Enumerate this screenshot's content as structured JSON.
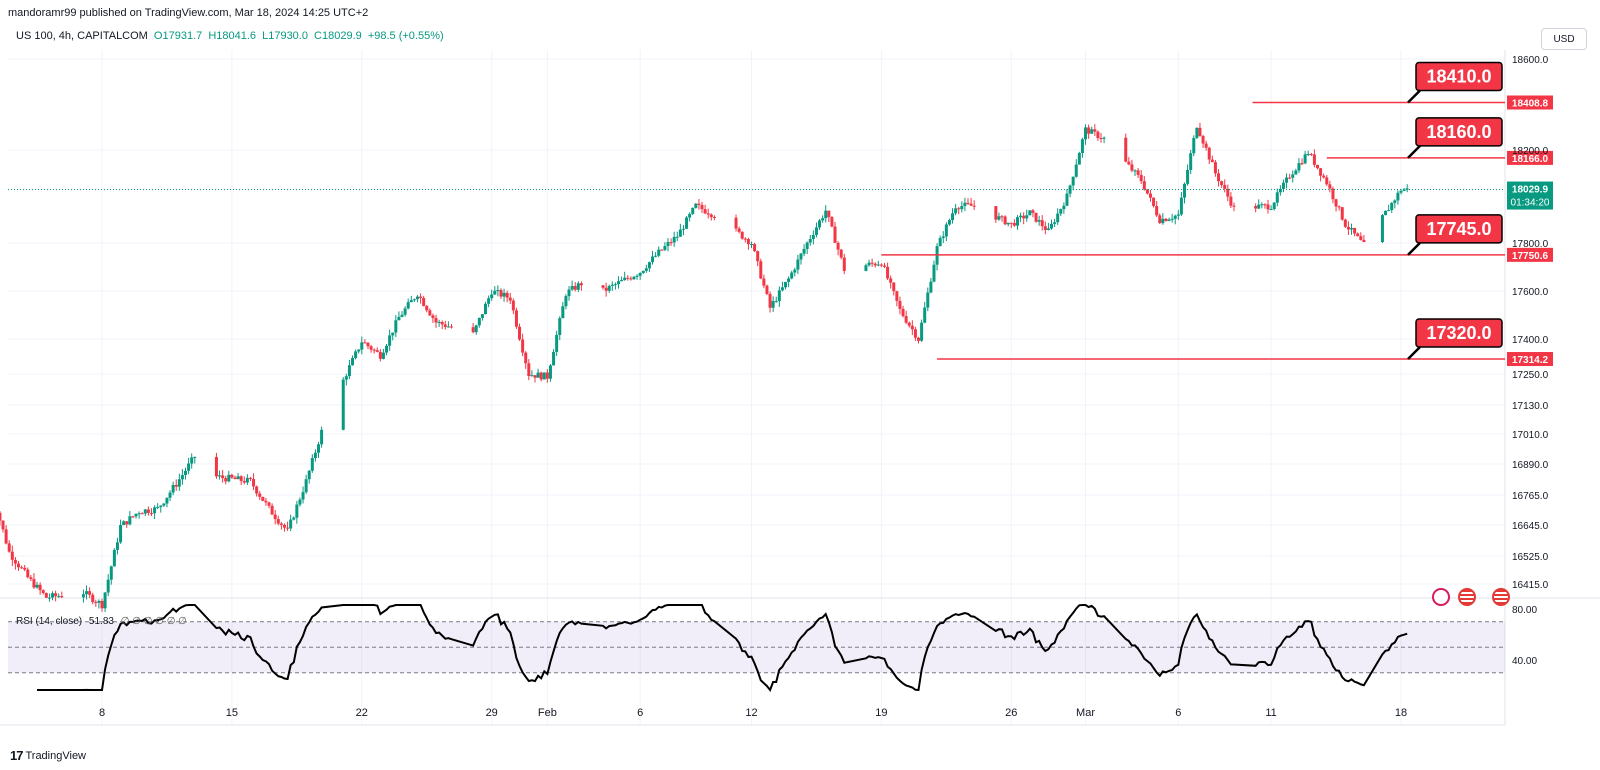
{
  "header": {
    "publisher": "mandoramr99 published on TradingView.com, Mar 18, 2024 14:25 UTC+2"
  },
  "symbol": {
    "title": "US 100, 4h, CAPITALCOM",
    "open": "O17931.7",
    "high": "H18041.6",
    "low": "L17930.0",
    "close": "C18029.9",
    "change": "+98.5 (+0.55%)"
  },
  "currency_button": "USD",
  "rsi": {
    "label": "RSI (14, close)",
    "value": "51.83",
    "extra": "∅ ∅ ∅ ∅ ∅ ∅",
    "levels": [
      70,
      50,
      30
    ],
    "axis_ticks": [
      "80.00",
      "40.00"
    ]
  },
  "footer": {
    "brand": "TradingView"
  },
  "chart_data": {
    "type": "candlestick",
    "y_ticks": [
      18600,
      18200,
      17800,
      17600,
      17400,
      17250,
      17130,
      17010,
      16890,
      16765,
      16645,
      16525,
      16415
    ],
    "y_tick_labels": [
      "18600.0",
      "18200.0",
      "17800.0",
      "17600.0",
      "17400.0",
      "17250.0",
      "17130.0",
      "17010.0",
      "16890.0",
      "16765.0",
      "16645.0",
      "16525.0",
      "16415.0"
    ],
    "x_tick_labels": [
      "8",
      "15",
      "22",
      "29",
      "Feb",
      "6",
      "12",
      "19",
      "26",
      "Mar",
      "6",
      "11",
      "18"
    ],
    "current_price": {
      "value": 18029.9,
      "label": "18029.9",
      "countdown": "01:34:20"
    },
    "levels": [
      {
        "value": 18408.8,
        "label": "18408.8",
        "callout": "18410.0",
        "start_date": "Mar 10"
      },
      {
        "value": 18166.0,
        "label": "18166.0",
        "callout": "18160.0",
        "start_date": "Mar 14"
      },
      {
        "value": 17750.6,
        "label": "17750.6",
        "callout": "17745.0",
        "start_date": "Feb 19"
      },
      {
        "value": 17314.2,
        "label": "17314.2",
        "callout": "17320.0",
        "start_date": "Feb 22"
      }
    ],
    "close_path": [
      [
        "Jan 2",
        16790
      ],
      [
        "Jan 3",
        16540
      ],
      [
        "Jan 4",
        16440
      ],
      [
        "Jan 5",
        16360
      ],
      [
        "Jan 7",
        16380
      ],
      [
        "Jan 8",
        16330
      ],
      [
        "Jan 9",
        16640
      ],
      [
        "Jan 10",
        16700
      ],
      [
        "Jan 11",
        16710
      ],
      [
        "Jan 12",
        16810
      ],
      [
        "Jan 13",
        16920
      ],
      [
        "Jan 14",
        16840
      ],
      [
        "Jan 16",
        16820
      ],
      [
        "Jan 17",
        16710
      ],
      [
        "Jan 18",
        16620
      ],
      [
        "Jan 19",
        16820
      ],
      [
        "Jan 20",
        17060
      ],
      [
        "Jan 22",
        17390
      ],
      [
        "Jan 23",
        17330
      ],
      [
        "Jan 24",
        17490
      ],
      [
        "Jan 25",
        17590
      ],
      [
        "Jan 26",
        17470
      ],
      [
        "Jan 28",
        17420
      ],
      [
        "Jan 29",
        17600
      ],
      [
        "Jan 30",
        17570
      ],
      [
        "Jan 31",
        17250
      ],
      [
        "Feb 1",
        17240
      ],
      [
        "Feb 2",
        17590
      ],
      [
        "Feb 3",
        17640
      ],
      [
        "Feb 4",
        17600
      ],
      [
        "Feb 6",
        17680
      ],
      [
        "Feb 7",
        17760
      ],
      [
        "Feb 8",
        17830
      ],
      [
        "Feb 9",
        17960
      ],
      [
        "Feb 10",
        17920
      ],
      [
        "Feb 12",
        17800
      ],
      [
        "Feb 13",
        17530
      ],
      [
        "Feb 14",
        17650
      ],
      [
        "Feb 15",
        17800
      ],
      [
        "Feb 16",
        17940
      ],
      [
        "Feb 17",
        17690
      ],
      [
        "Feb 19",
        17720
      ],
      [
        "Feb 20",
        17520
      ],
      [
        "Feb 21",
        17400
      ],
      [
        "Feb 22",
        17780
      ],
      [
        "Feb 23",
        17960
      ],
      [
        "Feb 24",
        17960
      ],
      [
        "Feb 26",
        17880
      ],
      [
        "Feb 27",
        17930
      ],
      [
        "Feb 28",
        17850
      ],
      [
        "Feb 29",
        18000
      ],
      [
        "Mar 1",
        18290
      ],
      [
        "Mar 2",
        18250
      ],
      [
        "Mar 4",
        18070
      ],
      [
        "Mar 5",
        17900
      ],
      [
        "Mar 6",
        17920
      ],
      [
        "Mar 7",
        18310
      ],
      [
        "Mar 8",
        18100
      ],
      [
        "Mar 9",
        17950
      ],
      [
        "Mar 11",
        17960
      ],
      [
        "Mar 12",
        18090
      ],
      [
        "Mar 13",
        18190
      ],
      [
        "Mar 14",
        18060
      ],
      [
        "Mar 15",
        17880
      ],
      [
        "Mar 16",
        17790
      ],
      [
        "Mar 18",
        18030
      ]
    ]
  }
}
